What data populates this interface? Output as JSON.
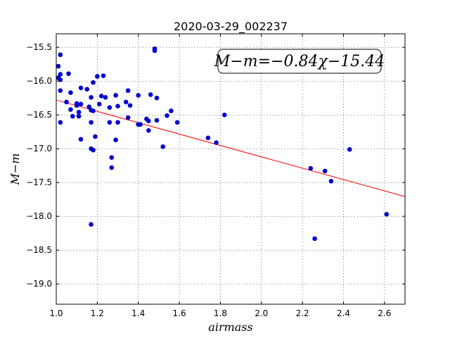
{
  "chart_data": {
    "type": "scatter",
    "title": "2020-03-29_002237",
    "xlabel": "airmass",
    "ylabel": "M−m",
    "xlim": [
      1.0,
      2.7
    ],
    "ylim": [
      -19.3,
      -15.3
    ],
    "x_ticks": [
      1.0,
      1.2,
      1.4,
      1.6,
      1.8,
      2.0,
      2.2,
      2.4,
      2.6
    ],
    "x_tick_labels": [
      "1.0",
      "1.2",
      "1.4",
      "1.6",
      "1.8",
      "2.0",
      "2.2",
      "2.4",
      "2.6"
    ],
    "y_ticks": [
      -15.5,
      -16.0,
      -16.5,
      -17.0,
      -17.5,
      -18.0,
      -18.5,
      -19.0
    ],
    "y_tick_labels": [
      "−15.5",
      "−16.0",
      "−16.5",
      "−17.0",
      "−17.5",
      "−18.0",
      "−18.5",
      "−19.0"
    ],
    "grid": true,
    "annotation": "M−m=−0.84χ−15.44",
    "marker_color": "#0000cc",
    "fit_color": "#ff0000",
    "fit": {
      "slope": -0.84,
      "intercept": -15.44
    },
    "points": [
      [
        1.01,
        -15.78
      ],
      [
        1.02,
        -15.61
      ],
      [
        1.02,
        -15.9
      ],
      [
        1.01,
        -15.95
      ],
      [
        1.02,
        -15.98
      ],
      [
        1.02,
        -16.14
      ],
      [
        1.02,
        -16.61
      ],
      [
        1.05,
        -16.31
      ],
      [
        1.06,
        -15.89
      ],
      [
        1.07,
        -16.42
      ],
      [
        1.07,
        -16.17
      ],
      [
        1.08,
        -16.52
      ],
      [
        1.1,
        -16.33
      ],
      [
        1.1,
        -16.36
      ],
      [
        1.11,
        -16.46
      ],
      [
        1.11,
        -16.52
      ],
      [
        1.12,
        -16.34
      ],
      [
        1.12,
        -16.1
      ],
      [
        1.12,
        -16.86
      ],
      [
        1.15,
        -16.12
      ],
      [
        1.16,
        -16.38
      ],
      [
        1.17,
        -16.43
      ],
      [
        1.17,
        -16.61
      ],
      [
        1.17,
        -16.24
      ],
      [
        1.17,
        -18.12
      ],
      [
        1.17,
        -17.0
      ],
      [
        1.18,
        -17.02
      ],
      [
        1.18,
        -16.44
      ],
      [
        1.18,
        -16.02
      ],
      [
        1.19,
        -16.82
      ],
      [
        1.2,
        -15.93
      ],
      [
        1.21,
        -16.34
      ],
      [
        1.22,
        -16.22
      ],
      [
        1.23,
        -15.92
      ],
      [
        1.24,
        -16.24
      ],
      [
        1.26,
        -16.39
      ],
      [
        1.26,
        -16.61
      ],
      [
        1.27,
        -17.13
      ],
      [
        1.27,
        -17.28
      ],
      [
        1.29,
        -16.21
      ],
      [
        1.29,
        -16.87
      ],
      [
        1.3,
        -16.37
      ],
      [
        1.3,
        -16.61
      ],
      [
        1.34,
        -16.31
      ],
      [
        1.35,
        -16.14
      ],
      [
        1.35,
        -16.54
      ],
      [
        1.36,
        -16.36
      ],
      [
        1.4,
        -16.21
      ],
      [
        1.4,
        -16.64
      ],
      [
        1.41,
        -16.64
      ],
      [
        1.44,
        -16.56
      ],
      [
        1.45,
        -16.59
      ],
      [
        1.45,
        -16.73
      ],
      [
        1.46,
        -16.2
      ],
      [
        1.48,
        -15.52
      ],
      [
        1.48,
        -15.55
      ],
      [
        1.49,
        -16.25
      ],
      [
        1.49,
        -16.58
      ],
      [
        1.52,
        -16.97
      ],
      [
        1.54,
        -16.51
      ],
      [
        1.56,
        -16.44
      ],
      [
        1.59,
        -16.61
      ],
      [
        1.74,
        -16.84
      ],
      [
        1.78,
        -16.91
      ],
      [
        1.82,
        -16.5
      ],
      [
        2.24,
        -17.29
      ],
      [
        2.26,
        -18.33
      ],
      [
        2.31,
        -17.33
      ],
      [
        2.34,
        -17.48
      ],
      [
        2.43,
        -17.01
      ],
      [
        2.61,
        -17.97
      ]
    ]
  }
}
